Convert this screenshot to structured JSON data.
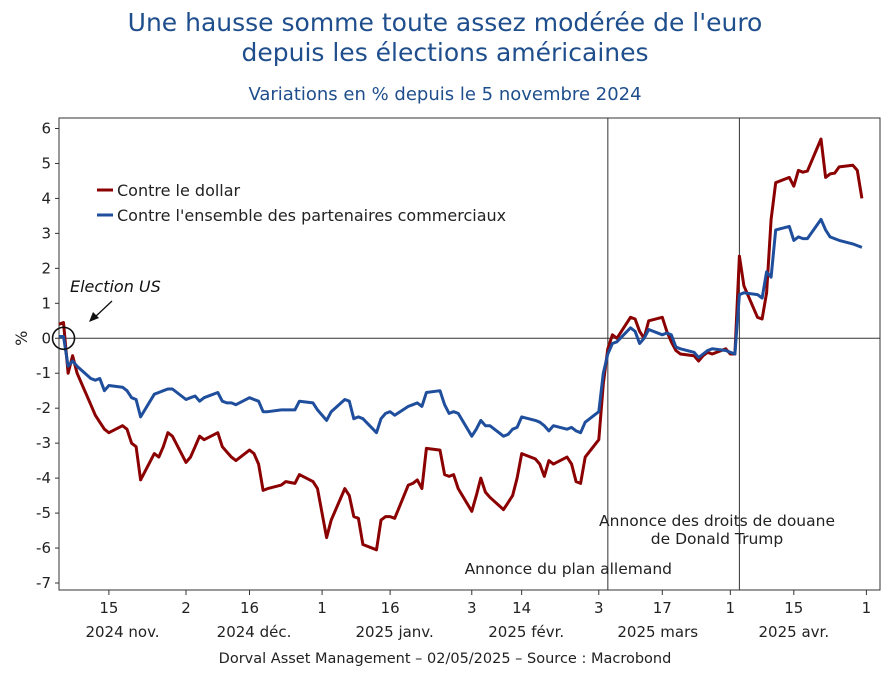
{
  "title_line1": "Une hausse somme toute assez modérée de l'euro",
  "title_line2": "depuis les élections américaines",
  "subtitle": "Variations en % depuis le 5 novembre 2024",
  "source": "Dorval Asset Management – 02/05/2025 –   Source : Macrobond",
  "colors": {
    "title": "#1f4e8c",
    "dollar": "#8b0000",
    "partners": "#1f4e9c"
  },
  "chart_data": {
    "type": "line",
    "ylabel": "%",
    "ylim": [
      -7.2,
      6.3
    ],
    "yticks": [
      6,
      5,
      4,
      3,
      2,
      1,
      0,
      -1,
      -2,
      -3,
      -4,
      -5,
      -6,
      -7
    ],
    "x_start": "2024-11-04",
    "x_end": "2025-05-04",
    "grid": false,
    "legend": "top-left",
    "day_ticks": [
      {
        "date": "2024-11-15",
        "label": "15"
      },
      {
        "date": "2024-12-02",
        "label": "2"
      },
      {
        "date": "2024-12-16",
        "label": "16"
      },
      {
        "date": "2025-01-01",
        "label": "1"
      },
      {
        "date": "2025-01-16",
        "label": "16"
      },
      {
        "date": "2025-02-03",
        "label": "3"
      },
      {
        "date": "2025-02-14",
        "label": "14"
      },
      {
        "date": "2025-03-03",
        "label": "3"
      },
      {
        "date": "2025-03-17",
        "label": "17"
      },
      {
        "date": "2025-04-01",
        "label": "1"
      },
      {
        "date": "2025-04-15",
        "label": "15"
      },
      {
        "date": "2025-05-01",
        "label": "1"
      }
    ],
    "month_labels": [
      {
        "date": "2024-11-18",
        "label": "2024 nov."
      },
      {
        "date": "2024-12-17",
        "label": "2024 déc."
      },
      {
        "date": "2025-01-17",
        "label": "2025 janv."
      },
      {
        "date": "2025-02-15",
        "label": "2025 févr."
      },
      {
        "date": "2025-03-16",
        "label": "2025 mars"
      },
      {
        "date": "2025-04-15",
        "label": "2025 avr."
      }
    ],
    "annotations": [
      {
        "text": "Election US",
        "date": "2024-11-05",
        "y": 0
      },
      {
        "text": "Annonce du plan allemand",
        "date": "2025-03-05"
      },
      {
        "text_line1": "Annonce des droits de douane",
        "text_line2": "de Donald Trump",
        "date": "2025-04-03"
      }
    ],
    "series": [
      {
        "name": "Contre le dollar",
        "points": [
          [
            "2024-11-04",
            0.4
          ],
          [
            "2024-11-05",
            0.45
          ],
          [
            "2024-11-06",
            -1.0
          ],
          [
            "2024-11-07",
            -0.5
          ],
          [
            "2024-11-08",
            -1.0
          ],
          [
            "2024-11-11",
            -1.9
          ],
          [
            "2024-11-12",
            -2.2
          ],
          [
            "2024-11-13",
            -2.4
          ],
          [
            "2024-11-14",
            -2.6
          ],
          [
            "2024-11-15",
            -2.7
          ],
          [
            "2024-11-18",
            -2.5
          ],
          [
            "2024-11-19",
            -2.6
          ],
          [
            "2024-11-20",
            -3.0
          ],
          [
            "2024-11-21",
            -3.1
          ],
          [
            "2024-11-22",
            -4.05
          ],
          [
            "2024-11-25",
            -3.3
          ],
          [
            "2024-11-26",
            -3.4
          ],
          [
            "2024-11-27",
            -3.1
          ],
          [
            "2024-11-28",
            -2.7
          ],
          [
            "2024-11-29",
            -2.8
          ],
          [
            "2024-12-02",
            -3.55
          ],
          [
            "2024-12-03",
            -3.4
          ],
          [
            "2024-12-04",
            -3.1
          ],
          [
            "2024-12-05",
            -2.8
          ],
          [
            "2024-12-06",
            -2.9
          ],
          [
            "2024-12-09",
            -2.7
          ],
          [
            "2024-12-10",
            -3.1
          ],
          [
            "2024-12-11",
            -3.25
          ],
          [
            "2024-12-12",
            -3.4
          ],
          [
            "2024-12-13",
            -3.5
          ],
          [
            "2024-12-16",
            -3.2
          ],
          [
            "2024-12-17",
            -3.3
          ],
          [
            "2024-12-18",
            -3.6
          ],
          [
            "2024-12-19",
            -4.35
          ],
          [
            "2024-12-20",
            -4.3
          ],
          [
            "2024-12-23",
            -4.2
          ],
          [
            "2024-12-24",
            -4.1
          ],
          [
            "2024-12-26",
            -4.15
          ],
          [
            "2024-12-27",
            -3.9
          ],
          [
            "2024-12-30",
            -4.1
          ],
          [
            "2024-12-31",
            -4.3
          ],
          [
            "2025-01-02",
            -5.7
          ],
          [
            "2025-01-03",
            -5.2
          ],
          [
            "2025-01-06",
            -4.3
          ],
          [
            "2025-01-07",
            -4.5
          ],
          [
            "2025-01-08",
            -5.1
          ],
          [
            "2025-01-09",
            -5.15
          ],
          [
            "2025-01-10",
            -5.9
          ],
          [
            "2025-01-13",
            -6.05
          ],
          [
            "2025-01-14",
            -5.2
          ],
          [
            "2025-01-15",
            -5.1
          ],
          [
            "2025-01-16",
            -5.1
          ],
          [
            "2025-01-17",
            -5.15
          ],
          [
            "2025-01-20",
            -4.2
          ],
          [
            "2025-01-21",
            -4.15
          ],
          [
            "2025-01-22",
            -4.05
          ],
          [
            "2025-01-23",
            -4.3
          ],
          [
            "2025-01-24",
            -3.15
          ],
          [
            "2025-01-27",
            -3.2
          ],
          [
            "2025-01-28",
            -3.9
          ],
          [
            "2025-01-29",
            -3.95
          ],
          [
            "2025-01-30",
            -3.9
          ],
          [
            "2025-01-31",
            -4.3
          ],
          [
            "2025-02-03",
            -4.95
          ],
          [
            "2025-02-04",
            -4.5
          ],
          [
            "2025-02-05",
            -4.0
          ],
          [
            "2025-02-06",
            -4.4
          ],
          [
            "2025-02-07",
            -4.55
          ],
          [
            "2025-02-10",
            -4.9
          ],
          [
            "2025-02-11",
            -4.7
          ],
          [
            "2025-02-12",
            -4.5
          ],
          [
            "2025-02-13",
            -4.0
          ],
          [
            "2025-02-14",
            -3.3
          ],
          [
            "2025-02-17",
            -3.45
          ],
          [
            "2025-02-18",
            -3.6
          ],
          [
            "2025-02-19",
            -3.95
          ],
          [
            "2025-02-20",
            -3.5
          ],
          [
            "2025-02-21",
            -3.6
          ],
          [
            "2025-02-24",
            -3.4
          ],
          [
            "2025-02-25",
            -3.6
          ],
          [
            "2025-02-26",
            -4.1
          ],
          [
            "2025-02-27",
            -4.15
          ],
          [
            "2025-02-28",
            -3.4
          ],
          [
            "2025-03-03",
            -2.9
          ],
          [
            "2025-03-04",
            -1.3
          ],
          [
            "2025-03-05",
            -0.3
          ],
          [
            "2025-03-06",
            0.1
          ],
          [
            "2025-03-07",
            0.0
          ],
          [
            "2025-03-10",
            0.6
          ],
          [
            "2025-03-11",
            0.55
          ],
          [
            "2025-03-12",
            0.2
          ],
          [
            "2025-03-13",
            0.0
          ],
          [
            "2025-03-14",
            0.5
          ],
          [
            "2025-03-17",
            0.6
          ],
          [
            "2025-03-18",
            0.2
          ],
          [
            "2025-03-19",
            -0.1
          ],
          [
            "2025-03-20",
            -0.35
          ],
          [
            "2025-03-21",
            -0.45
          ],
          [
            "2025-03-24",
            -0.5
          ],
          [
            "2025-03-25",
            -0.65
          ],
          [
            "2025-03-26",
            -0.5
          ],
          [
            "2025-03-27",
            -0.4
          ],
          [
            "2025-03-28",
            -0.45
          ],
          [
            "2025-03-31",
            -0.3
          ],
          [
            "2025-04-01",
            -0.45
          ],
          [
            "2025-04-02",
            -0.45
          ],
          [
            "2025-04-03",
            2.35
          ],
          [
            "2025-04-04",
            1.5
          ],
          [
            "2025-04-07",
            0.6
          ],
          [
            "2025-04-08",
            0.55
          ],
          [
            "2025-04-09",
            1.3
          ],
          [
            "2025-04-10",
            3.4
          ],
          [
            "2025-04-11",
            4.45
          ],
          [
            "2025-04-14",
            4.6
          ],
          [
            "2025-04-15",
            4.35
          ],
          [
            "2025-04-16",
            4.8
          ],
          [
            "2025-04-17",
            4.75
          ],
          [
            "2025-04-18",
            4.78
          ],
          [
            "2025-04-21",
            5.7
          ],
          [
            "2025-04-22",
            4.6
          ],
          [
            "2025-04-23",
            4.7
          ],
          [
            "2025-04-24",
            4.72
          ],
          [
            "2025-04-25",
            4.9
          ],
          [
            "2025-04-28",
            4.95
          ],
          [
            "2025-04-29",
            4.8
          ],
          [
            "2025-04-30",
            4.0
          ]
        ]
      },
      {
        "name": "Contre l'ensemble des partenaires commerciaux",
        "points": [
          [
            "2024-11-04",
            0.05
          ],
          [
            "2024-11-05",
            0.05
          ],
          [
            "2024-11-06",
            -0.8
          ],
          [
            "2024-11-07",
            -0.65
          ],
          [
            "2024-11-08",
            -0.8
          ],
          [
            "2024-11-11",
            -1.15
          ],
          [
            "2024-11-12",
            -1.2
          ],
          [
            "2024-11-13",
            -1.15
          ],
          [
            "2024-11-14",
            -1.5
          ],
          [
            "2024-11-15",
            -1.35
          ],
          [
            "2024-11-18",
            -1.4
          ],
          [
            "2024-11-19",
            -1.5
          ],
          [
            "2024-11-20",
            -1.7
          ],
          [
            "2024-11-21",
            -1.75
          ],
          [
            "2024-11-22",
            -2.25
          ],
          [
            "2024-11-25",
            -1.6
          ],
          [
            "2024-11-26",
            -1.55
          ],
          [
            "2024-11-27",
            -1.5
          ],
          [
            "2024-11-28",
            -1.45
          ],
          [
            "2024-11-29",
            -1.45
          ],
          [
            "2024-12-02",
            -1.75
          ],
          [
            "2024-12-03",
            -1.7
          ],
          [
            "2024-12-04",
            -1.65
          ],
          [
            "2024-12-05",
            -1.8
          ],
          [
            "2024-12-06",
            -1.7
          ],
          [
            "2024-12-09",
            -1.55
          ],
          [
            "2024-12-10",
            -1.8
          ],
          [
            "2024-12-11",
            -1.85
          ],
          [
            "2024-12-12",
            -1.85
          ],
          [
            "2024-12-13",
            -1.9
          ],
          [
            "2024-12-16",
            -1.7
          ],
          [
            "2024-12-17",
            -1.75
          ],
          [
            "2024-12-18",
            -1.8
          ],
          [
            "2024-12-19",
            -2.1
          ],
          [
            "2024-12-20",
            -2.1
          ],
          [
            "2024-12-23",
            -2.05
          ],
          [
            "2024-12-24",
            -2.05
          ],
          [
            "2024-12-26",
            -2.05
          ],
          [
            "2024-12-27",
            -1.8
          ],
          [
            "2024-12-30",
            -1.85
          ],
          [
            "2024-12-31",
            -2.05
          ],
          [
            "2025-01-02",
            -2.35
          ],
          [
            "2025-01-03",
            -2.1
          ],
          [
            "2025-01-06",
            -1.75
          ],
          [
            "2025-01-07",
            -1.8
          ],
          [
            "2025-01-08",
            -2.3
          ],
          [
            "2025-01-09",
            -2.25
          ],
          [
            "2025-01-10",
            -2.3
          ],
          [
            "2025-01-13",
            -2.7
          ],
          [
            "2025-01-14",
            -2.3
          ],
          [
            "2025-01-15",
            -2.15
          ],
          [
            "2025-01-16",
            -2.1
          ],
          [
            "2025-01-17",
            -2.2
          ],
          [
            "2025-01-20",
            -1.95
          ],
          [
            "2025-01-21",
            -1.9
          ],
          [
            "2025-01-22",
            -1.85
          ],
          [
            "2025-01-23",
            -1.95
          ],
          [
            "2025-01-24",
            -1.55
          ],
          [
            "2025-01-27",
            -1.5
          ],
          [
            "2025-01-28",
            -1.9
          ],
          [
            "2025-01-29",
            -2.15
          ],
          [
            "2025-01-30",
            -2.1
          ],
          [
            "2025-01-31",
            -2.15
          ],
          [
            "2025-02-03",
            -2.8
          ],
          [
            "2025-02-04",
            -2.6
          ],
          [
            "2025-02-05",
            -2.35
          ],
          [
            "2025-02-06",
            -2.5
          ],
          [
            "2025-02-07",
            -2.5
          ],
          [
            "2025-02-10",
            -2.8
          ],
          [
            "2025-02-11",
            -2.75
          ],
          [
            "2025-02-12",
            -2.6
          ],
          [
            "2025-02-13",
            -2.55
          ],
          [
            "2025-02-14",
            -2.25
          ],
          [
            "2025-02-17",
            -2.35
          ],
          [
            "2025-02-18",
            -2.4
          ],
          [
            "2025-02-19",
            -2.5
          ],
          [
            "2025-02-20",
            -2.65
          ],
          [
            "2025-02-21",
            -2.5
          ],
          [
            "2025-02-24",
            -2.6
          ],
          [
            "2025-02-25",
            -2.55
          ],
          [
            "2025-02-26",
            -2.65
          ],
          [
            "2025-02-27",
            -2.7
          ],
          [
            "2025-02-28",
            -2.4
          ],
          [
            "2025-03-03",
            -2.1
          ],
          [
            "2025-03-04",
            -1.0
          ],
          [
            "2025-03-05",
            -0.45
          ],
          [
            "2025-03-06",
            -0.15
          ],
          [
            "2025-03-07",
            -0.1
          ],
          [
            "2025-03-10",
            0.3
          ],
          [
            "2025-03-11",
            0.2
          ],
          [
            "2025-03-12",
            -0.15
          ],
          [
            "2025-03-13",
            0.0
          ],
          [
            "2025-03-14",
            0.25
          ],
          [
            "2025-03-17",
            0.1
          ],
          [
            "2025-03-18",
            0.15
          ],
          [
            "2025-03-19",
            0.1
          ],
          [
            "2025-03-20",
            -0.25
          ],
          [
            "2025-03-21",
            -0.3
          ],
          [
            "2025-03-24",
            -0.4
          ],
          [
            "2025-03-25",
            -0.55
          ],
          [
            "2025-03-26",
            -0.45
          ],
          [
            "2025-03-27",
            -0.35
          ],
          [
            "2025-03-28",
            -0.3
          ],
          [
            "2025-03-31",
            -0.35
          ],
          [
            "2025-04-01",
            -0.4
          ],
          [
            "2025-04-02",
            -0.45
          ],
          [
            "2025-04-03",
            1.25
          ],
          [
            "2025-04-04",
            1.3
          ],
          [
            "2025-04-07",
            1.25
          ],
          [
            "2025-04-08",
            1.15
          ],
          [
            "2025-04-09",
            1.9
          ],
          [
            "2025-04-10",
            1.75
          ],
          [
            "2025-04-11",
            3.1
          ],
          [
            "2025-04-14",
            3.2
          ],
          [
            "2025-04-15",
            2.8
          ],
          [
            "2025-04-16",
            2.9
          ],
          [
            "2025-04-17",
            2.85
          ],
          [
            "2025-04-18",
            2.85
          ],
          [
            "2025-04-21",
            3.4
          ],
          [
            "2025-04-22",
            3.1
          ],
          [
            "2025-04-23",
            2.9
          ],
          [
            "2025-04-24",
            2.85
          ],
          [
            "2025-04-25",
            2.8
          ],
          [
            "2025-04-28",
            2.7
          ],
          [
            "2025-04-29",
            2.65
          ],
          [
            "2025-04-30",
            2.6
          ]
        ]
      }
    ]
  }
}
